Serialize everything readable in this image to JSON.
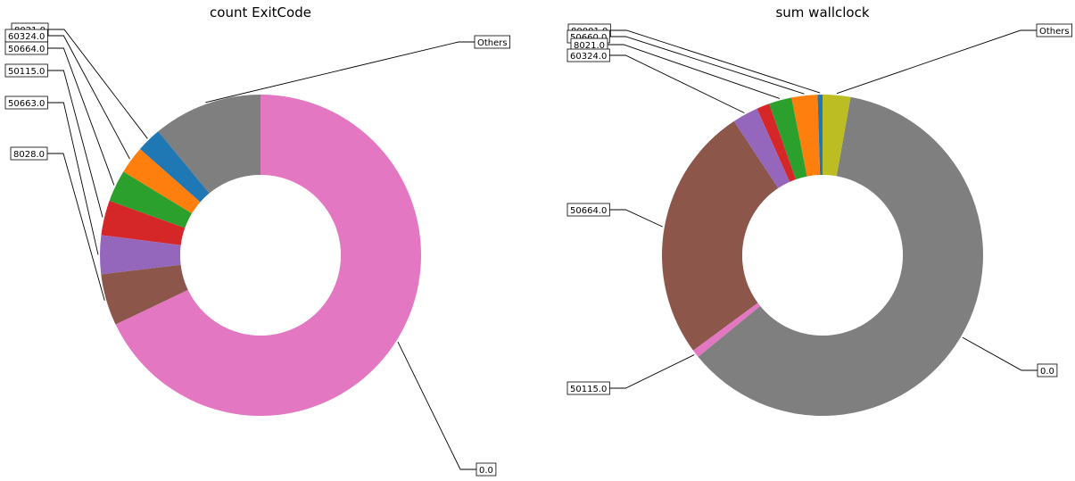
{
  "chart_data": [
    {
      "type": "pie",
      "donut": true,
      "title": "count ExitCode",
      "start_angle_deg": 90,
      "direction": "counterclockwise",
      "slices": [
        {
          "label": "Others",
          "value": 11.0,
          "color": "#7f7f7f"
        },
        {
          "label": "8021.0",
          "value": 2.5,
          "color": "#1f77b4"
        },
        {
          "label": "60324.0",
          "value": 2.8,
          "color": "#ff7f0e"
        },
        {
          "label": "50664.0",
          "value": 3.2,
          "color": "#2ca02c"
        },
        {
          "label": "50115.0",
          "value": 3.5,
          "color": "#d62728"
        },
        {
          "label": "50663.0",
          "value": 3.9,
          "color": "#9467bd"
        },
        {
          "label": "8028.0",
          "value": 5.2,
          "color": "#8c564b"
        },
        {
          "label": "0.0",
          "value": 67.9,
          "color": "#e377c2"
        }
      ]
    },
    {
      "type": "pie",
      "donut": true,
      "title": "sum wallclock",
      "start_angle_deg": 90,
      "direction": "counterclockwise",
      "slices": [
        {
          "label": "80001.0",
          "value": 0.5,
          "color": "#1f77b4"
        },
        {
          "label": "50660.0",
          "value": 2.6,
          "color": "#ff7f0e"
        },
        {
          "label": "8021.0",
          "value": 2.3,
          "color": "#2ca02c"
        },
        {
          "label": "",
          "value": 1.3,
          "color": "#d62728"
        },
        {
          "label": "60324.0",
          "value": 2.6,
          "color": "#9467bd"
        },
        {
          "label": "50664.0",
          "value": 25.8,
          "color": "#8c564b"
        },
        {
          "label": "50115.0",
          "value": 0.8,
          "color": "#e377c2"
        },
        {
          "label": "0.0",
          "value": 61.3,
          "color": "#7f7f7f"
        },
        {
          "label": "Others",
          "value": 2.8,
          "color": "#bcbd22"
        }
      ]
    }
  ]
}
